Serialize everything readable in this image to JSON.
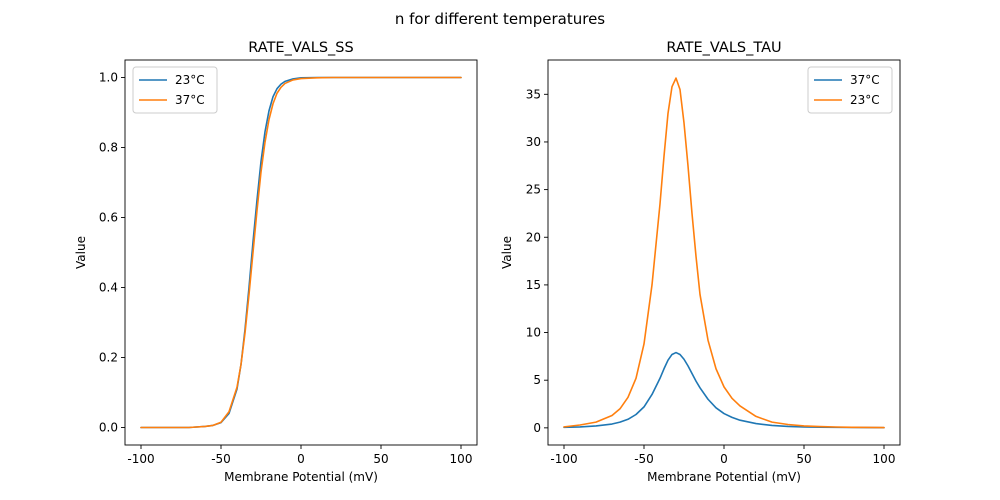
{
  "figure": {
    "suptitle": "n for different temperatures"
  },
  "chart_data": [
    {
      "type": "line",
      "title": "RATE_VALS_SS",
      "xlabel": "Membrane Potential (mV)",
      "ylabel": "Value",
      "xlim": [
        -110,
        110
      ],
      "ylim": [
        -0.05,
        1.05
      ],
      "xticks": [
        -100,
        -50,
        0,
        50,
        100
      ],
      "yticks": [
        0.0,
        0.2,
        0.4,
        0.6,
        0.8,
        1.0
      ],
      "ytick_labels": [
        "0.0",
        "0.2",
        "0.4",
        "0.6",
        "0.8",
        "1.0"
      ],
      "grid": false,
      "legend_position": "top-left",
      "x": [
        -100,
        -90,
        -80,
        -70,
        -60,
        -55,
        -50,
        -45,
        -40,
        -37.5,
        -35,
        -32.5,
        -30,
        -27.5,
        -25,
        -22.5,
        -20,
        -17.5,
        -15,
        -12.5,
        -10,
        -5,
        0,
        10,
        20,
        30,
        40,
        50,
        60,
        70,
        80,
        90,
        100
      ],
      "series": [
        {
          "name": "23°C",
          "color": "#1f77b4",
          "values": [
            0.0,
            0.0,
            0.0,
            0.0,
            0.003,
            0.006,
            0.014,
            0.04,
            0.11,
            0.18,
            0.28,
            0.4,
            0.53,
            0.65,
            0.76,
            0.845,
            0.905,
            0.945,
            0.968,
            0.981,
            0.989,
            0.996,
            0.999,
            1.0,
            1.0,
            1.0,
            1.0,
            1.0,
            1.0,
            1.0,
            1.0,
            1.0,
            1.0
          ]
        },
        {
          "name": "37°C",
          "color": "#ff7f0e",
          "values": [
            0.0,
            0.0,
            0.0,
            0.0,
            0.003,
            0.006,
            0.015,
            0.045,
            0.115,
            0.18,
            0.27,
            0.38,
            0.5,
            0.62,
            0.73,
            0.815,
            0.88,
            0.925,
            0.955,
            0.972,
            0.983,
            0.993,
            0.997,
            0.999,
            1.0,
            1.0,
            1.0,
            1.0,
            1.0,
            1.0,
            1.0,
            1.0,
            1.0
          ]
        }
      ]
    },
    {
      "type": "line",
      "title": "RATE_VALS_TAU",
      "xlabel": "Membrane Potential (mV)",
      "ylabel": "Value",
      "xlim": [
        -110,
        110
      ],
      "ylim": [
        -1.8,
        38.6
      ],
      "xticks": [
        -100,
        -50,
        0,
        50,
        100
      ],
      "yticks": [
        0,
        5,
        10,
        15,
        20,
        25,
        30,
        35
      ],
      "ytick_labels": [
        "0",
        "5",
        "10",
        "15",
        "20",
        "25",
        "30",
        "35"
      ],
      "grid": false,
      "legend_position": "top-right",
      "x": [
        -100,
        -90,
        -80,
        -70,
        -65,
        -60,
        -55,
        -50,
        -45,
        -40,
        -37.5,
        -35,
        -32.5,
        -30,
        -27.5,
        -25,
        -22.5,
        -20,
        -17.5,
        -15,
        -10,
        -5,
        0,
        5,
        10,
        20,
        30,
        40,
        50,
        60,
        70,
        80,
        90,
        100
      ],
      "series": [
        {
          "name": "37°C",
          "color": "#1f77b4",
          "values": [
            0.05,
            0.1,
            0.2,
            0.4,
            0.6,
            0.9,
            1.4,
            2.2,
            3.5,
            5.2,
            6.2,
            7.1,
            7.7,
            7.9,
            7.7,
            7.2,
            6.5,
            5.7,
            4.9,
            4.2,
            3.0,
            2.1,
            1.5,
            1.1,
            0.8,
            0.45,
            0.25,
            0.15,
            0.1,
            0.07,
            0.05,
            0.04,
            0.03,
            0.02
          ]
        },
        {
          "name": "23°C",
          "color": "#ff7f0e",
          "values": [
            0.1,
            0.3,
            0.6,
            1.3,
            2.0,
            3.2,
            5.2,
            8.8,
            15.0,
            23.5,
            28.5,
            33.0,
            35.8,
            36.7,
            35.5,
            32.0,
            27.5,
            22.5,
            18.0,
            14.0,
            9.2,
            6.2,
            4.3,
            3.1,
            2.3,
            1.2,
            0.6,
            0.35,
            0.2,
            0.13,
            0.09,
            0.06,
            0.04,
            0.03
          ]
        }
      ]
    }
  ]
}
